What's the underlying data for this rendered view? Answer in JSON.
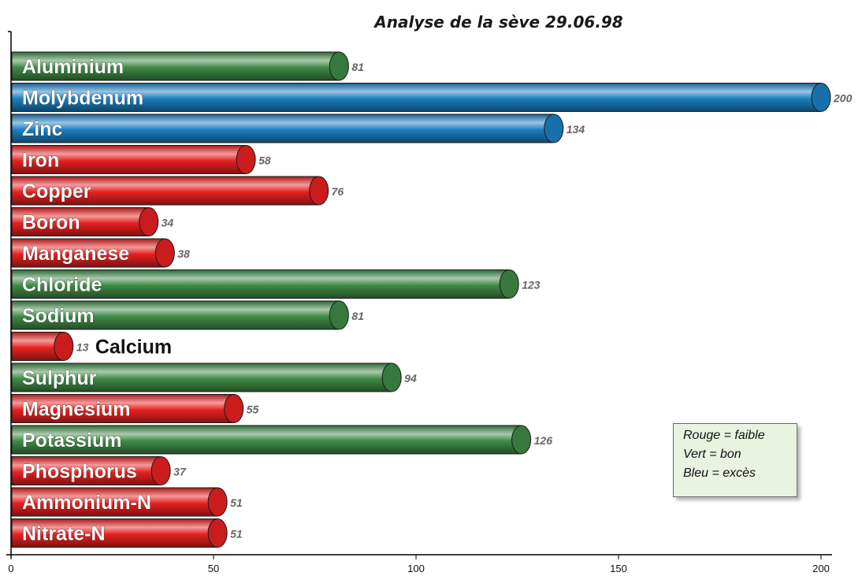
{
  "chart_data": {
    "type": "bar",
    "orientation": "horizontal",
    "title": "Analyse de la sève 29.06.98",
    "categories": [
      "Aluminium",
      "Molybdenum",
      "Zinc",
      "Iron",
      "Copper",
      "Boron",
      "Manganese",
      "Chloride",
      "Sodium",
      "Calcium",
      "Sulphur",
      "Magnesium",
      "Potassium",
      "Phosphorus",
      "Ammonium-N",
      "Nitrate-N"
    ],
    "values": [
      81,
      200,
      134,
      58,
      76,
      34,
      38,
      123,
      81,
      13,
      94,
      55,
      126,
      37,
      51,
      51
    ],
    "value_labels": [
      "81",
      "200",
      "134",
      "58",
      "76",
      "34",
      "38",
      "123",
      "81",
      "13",
      "94",
      "55",
      "126",
      "37",
      "51",
      "51"
    ],
    "status": [
      "bon",
      "excès",
      "excès",
      "faible",
      "faible",
      "faible",
      "faible",
      "bon",
      "bon",
      "faible",
      "bon",
      "faible",
      "bon",
      "faible",
      "faible",
      "faible"
    ],
    "colors": {
      "faible": "#e62020",
      "bon": "#3f8a45",
      "excès": "#1a7fc0"
    },
    "xlim": [
      0,
      200
    ],
    "xticks": [
      0,
      50,
      100,
      150,
      200
    ],
    "xtick_labels": [
      "0",
      "50",
      "100",
      "150",
      "200"
    ],
    "grid": false,
    "legend": {
      "placement": "bottom-right",
      "lines": [
        "Rouge = faible",
        "Vert = bon",
        "Bleu = excès"
      ]
    }
  }
}
